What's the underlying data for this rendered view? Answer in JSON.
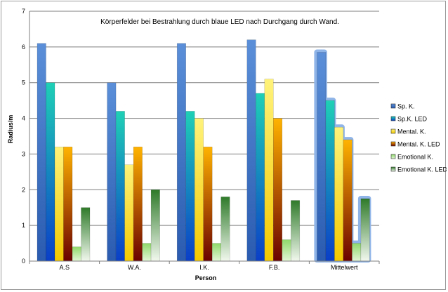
{
  "chart_data": {
    "type": "bar",
    "title": "Körperfelder bei Bestrahlung durch blaue LED nach Durchgang durch Wand.",
    "xlabel": "Person",
    "ylabel": "Radius/m",
    "ylim": [
      0,
      7
    ],
    "yticks": [
      "0",
      "1",
      "2",
      "3",
      "4",
      "5",
      "6",
      "7"
    ],
    "grid": true,
    "legend_position": "right",
    "categories": [
      "A.S",
      "W.A.",
      "I.K.",
      "F.B.",
      "Mittelwert"
    ],
    "highlighted_category": "Mittelwert",
    "series": [
      {
        "name": "Sp. K.",
        "values": [
          6.1,
          5.0,
          6.1,
          6.2,
          5.85
        ],
        "color_top": "#5b8fd8",
        "color_bottom": "#2a5bb0"
      },
      {
        "name": "Sp.K. LED",
        "values": [
          5.0,
          4.2,
          4.2,
          4.7,
          4.5
        ],
        "color_top": "#1fd0b6",
        "color_bottom": "#0a3ec8"
      },
      {
        "name": "Mental. K.",
        "values": [
          3.2,
          2.7,
          4.0,
          5.1,
          3.75
        ],
        "color_top": "#fff27a",
        "color_bottom": "#f3c900"
      },
      {
        "name": "Mental. K. LED",
        "values": [
          3.2,
          3.2,
          3.2,
          4.0,
          3.4
        ],
        "color_top": "#ffb300",
        "color_bottom": "#6a0000"
      },
      {
        "name": "Emotional K.",
        "values": [
          0.4,
          0.5,
          0.5,
          0.6,
          0.5
        ],
        "color_top": "#8fd86a",
        "color_bottom": "#e3f6d6"
      },
      {
        "name": "Emotional K. LED",
        "values": [
          1.5,
          2.0,
          1.8,
          1.7,
          1.75
        ],
        "color_top": "#2f7a2a",
        "color_bottom": "#f2f8ee"
      }
    ]
  }
}
